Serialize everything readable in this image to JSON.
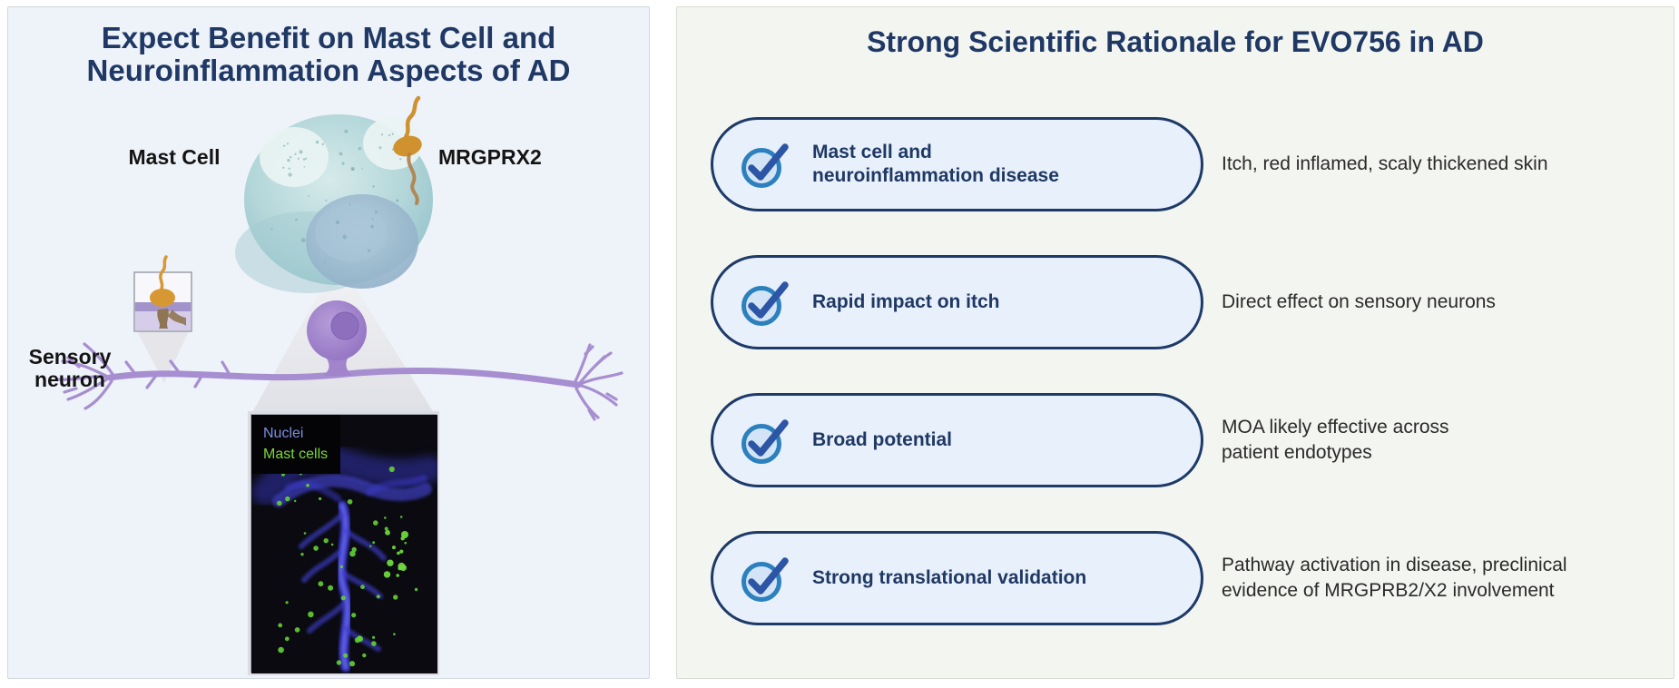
{
  "left_panel": {
    "title_lines": [
      "Expect Benefit on Mast Cell and",
      "Neuroinflammation Aspects of AD"
    ],
    "mast_cell_label": "Mast Cell",
    "receptor_label": "MRGPRX2",
    "neuron_label_lines": [
      "Sensory",
      "neuron"
    ],
    "micrograph_legend": {
      "nuclei": "Nuclei",
      "mast_cells": "Mast cells"
    }
  },
  "right_panel": {
    "title": "Strong Scientific Rationale for EVO756 in AD",
    "rows": [
      {
        "pill_lines": [
          "Mast cell and",
          "neuroinflammation disease"
        ],
        "desc_lines": [
          "Itch, red inflamed, scaly thickened skin"
        ]
      },
      {
        "pill_lines": [
          "Rapid impact on itch"
        ],
        "desc_lines": [
          "Direct effect on sensory neurons"
        ]
      },
      {
        "pill_lines": [
          "Broad potential"
        ],
        "desc_lines": [
          "MOA likely effective across",
          "patient endotypes"
        ]
      },
      {
        "pill_lines": [
          "Strong translational validation"
        ],
        "desc_lines": [
          "Pathway activation in disease, preclinical",
          "evidence of MRGPRB2/X2 involvement"
        ]
      }
    ]
  },
  "colors": {
    "title_navy": "#1f3864",
    "pill_border": "#1e3a68",
    "pill_fill": "#e7f0fb",
    "check_ring": "#2b80bd",
    "check_mark": "#2d55a5",
    "legend_nuclei": "#7b8ee0",
    "legend_mast_cells": "#7dd83a",
    "left_panel_bg": "#eef2f9",
    "right_panel_bg": "#f3f5f0"
  }
}
